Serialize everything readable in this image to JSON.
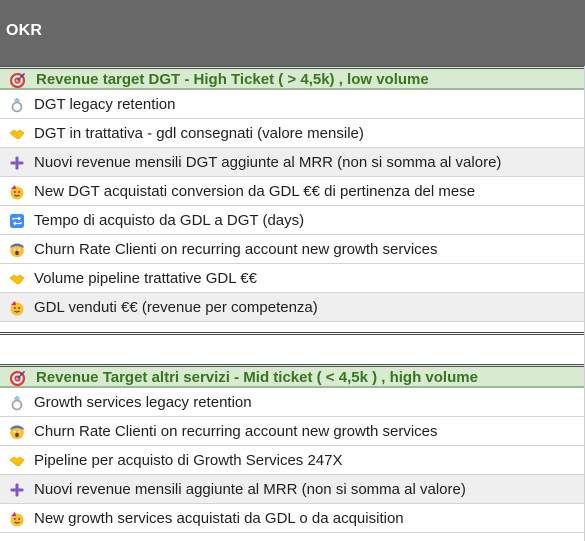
{
  "header": {
    "title": "OKR"
  },
  "sections": [
    {
      "title": "Revenue target DGT - High Ticket ( > 4,5k) , low volume",
      "icon": "target-icon",
      "rows": [
        {
          "label": "DGT legacy retention",
          "icon": "ring-icon"
        },
        {
          "label": "DGT in trattativa - gdl consegnati (valore mensile)",
          "icon": "handshake-icon"
        },
        {
          "label": "Nuovi revenue mensili DGT aggiunte al MRR (non si somma al valore)",
          "icon": "plus-icon"
        },
        {
          "label": "New DGT acquistati conversion da GDL €€ di pertinenza del mese",
          "icon": "party-face-icon"
        },
        {
          "label": "Tempo di acquisto da GDL a DGT (days)",
          "icon": "repeat-icon"
        },
        {
          "label": "Churn Rate Clienti on recurring account new growth services",
          "icon": "screaming-face-icon"
        },
        {
          "label": "Volume pipeline trattative GDL €€",
          "icon": "handshake-icon"
        },
        {
          "label": "GDL venduti €€ (revenue per competenza)",
          "icon": "party-face-icon"
        }
      ]
    },
    {
      "title": "Revenue Target altri servizi - Mid ticket ( < 4,5k ) , high volume",
      "icon": "target-icon",
      "rows": [
        {
          "label": "Growth services legacy retention",
          "icon": "ring-icon"
        },
        {
          "label": "Churn Rate Clienti on recurring account new growth services",
          "icon": "screaming-face-icon"
        },
        {
          "label": "Pipeline per acquisto di Growth Services 247X",
          "icon": "handshake-icon"
        },
        {
          "label": "Nuovi revenue mensili aggiunte al MRR (non si somma al valore)",
          "icon": "plus-icon"
        },
        {
          "label": "New growth services acquistati da GDL o da acquisition",
          "icon": "party-face-icon"
        }
      ]
    }
  ],
  "colors": {
    "header_bg": "#686868",
    "section_bg": "#d9ead3",
    "section_text": "#38761d",
    "alt_row_bg": "#efefef"
  }
}
